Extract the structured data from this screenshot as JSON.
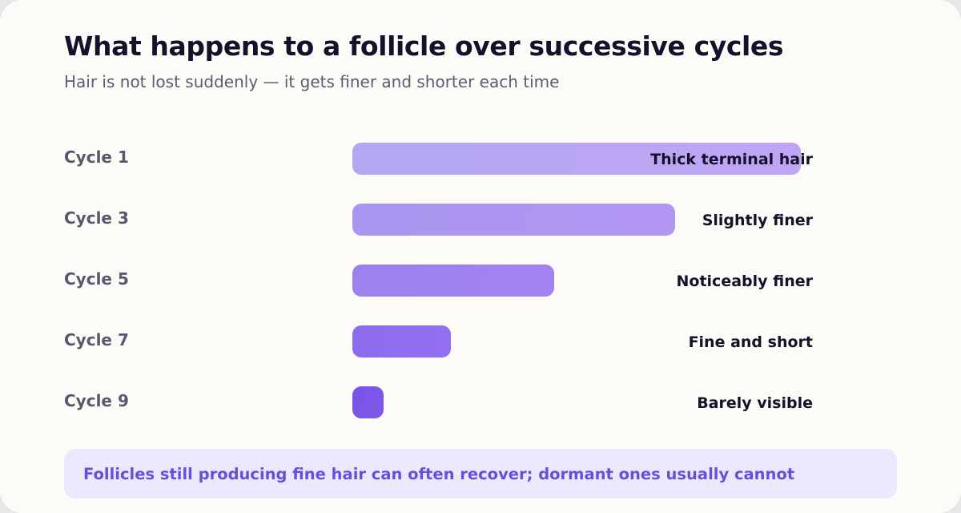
{
  "title": "What happens to a follicle over successive cycles",
  "subtitle": "Hair is not lost suddenly — it gets finer and shorter each time",
  "colors": {
    "card_background": "#fdfbf7",
    "title": "#14122b",
    "subtitle": "#5e5a74",
    "row_label": "#5b576e",
    "note_background": "#ece9fe",
    "note_text": "#6a4de0",
    "bar_gradients": [
      [
        "#b3a7f2",
        "#c0a6f4"
      ],
      [
        "#a996f0",
        "#b196f2"
      ],
      [
        "#9b82ee",
        "#a283f0"
      ],
      [
        "#8b6cec",
        "#936ef1"
      ],
      [
        "#7a55e6",
        "#7e56ea"
      ]
    ]
  },
  "chart_data": {
    "type": "bar",
    "orientation": "horizontal",
    "categories": [
      "Cycle 1",
      "Cycle 3",
      "Cycle 5",
      "Cycle 7",
      "Cycle 9"
    ],
    "values": [
      100,
      72,
      45,
      22,
      7
    ],
    "data_labels": [
      "Thick terminal hair",
      "Slightly finer",
      "Noticeably finer",
      "Fine and short",
      "Barely visible"
    ],
    "xlim": [
      0,
      100
    ],
    "grid": false,
    "legend": "none"
  },
  "note": "Follicles still producing fine hair can often recover; dormant ones usually cannot"
}
